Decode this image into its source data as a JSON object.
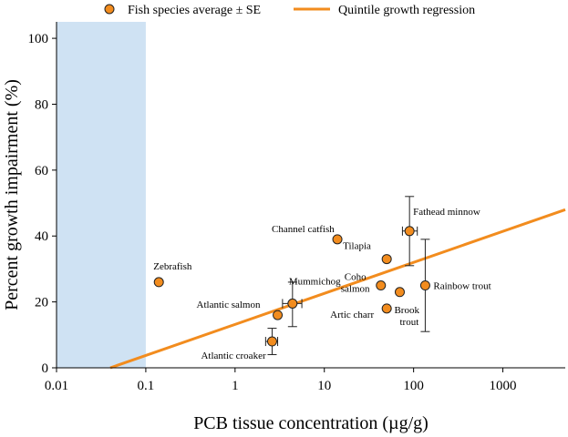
{
  "chart_data": {
    "type": "scatter",
    "xlabel": "PCB tissue concentration (µg/g)",
    "ylabel": "Percent growth impairment (%)",
    "x_scale": "log",
    "xlim": [
      0.01,
      5000
    ],
    "ylim": [
      0,
      105
    ],
    "x_ticks": [
      0.01,
      0.1,
      1,
      10,
      100,
      1000
    ],
    "x_tick_labels": [
      "0.01",
      "0.1",
      "1",
      "10",
      "100",
      "1000"
    ],
    "y_ticks": [
      0,
      20,
      40,
      60,
      80,
      100
    ],
    "y_tick_labels": [
      "0",
      "20",
      "40",
      "60",
      "80",
      "100"
    ],
    "grid": false,
    "legend": {
      "placement": "top",
      "entries": [
        "Fish species average ± SE",
        "Quintile growth regression"
      ]
    },
    "shaded_region": {
      "x_from": 0.01,
      "x_to": 0.1,
      "color": "#cfe2f3"
    },
    "colors": {
      "points": "#f28c1e",
      "regression": "#f28c1e",
      "point_outline": "#222222"
    },
    "series": [
      {
        "name": "Fish species average ± SE",
        "kind": "points",
        "points": [
          {
            "label": "Zebrafish",
            "x": 0.14,
            "y": 26
          },
          {
            "label": "Channel catfish",
            "x": 14,
            "y": 39
          },
          {
            "label": "Fathead minnow",
            "x": 90,
            "y": 41.5,
            "xerr": [
              75,
              110
            ],
            "yerr": [
              31,
              52
            ]
          },
          {
            "label": "Tilapia",
            "x": 50,
            "y": 33
          },
          {
            "label": "Coho salmon",
            "x": 43,
            "y": 25
          },
          {
            "label": "Rainbow trout",
            "x": 135,
            "y": 25,
            "yerr": [
              11,
              39
            ]
          },
          {
            "label": "Brook trout",
            "x": 70,
            "y": 23
          },
          {
            "label": "Mummichog",
            "x": 4.4,
            "y": 19.5,
            "xerr": [
              3.4,
              5.6
            ],
            "yerr": [
              12.5,
              26
            ]
          },
          {
            "label": "Atlantic salmon",
            "x": 3.0,
            "y": 16
          },
          {
            "label": "Artic charr",
            "x": 50,
            "y": 18
          },
          {
            "label": "Atlantic croaker",
            "x": 2.6,
            "y": 8,
            "xerr": [
              2.2,
              3.0
            ],
            "yerr": [
              4,
              12
            ]
          }
        ]
      },
      {
        "name": "Quintile growth regression",
        "kind": "line",
        "x": [
          0.04,
          5000
        ],
        "y": [
          0,
          48
        ]
      }
    ]
  }
}
